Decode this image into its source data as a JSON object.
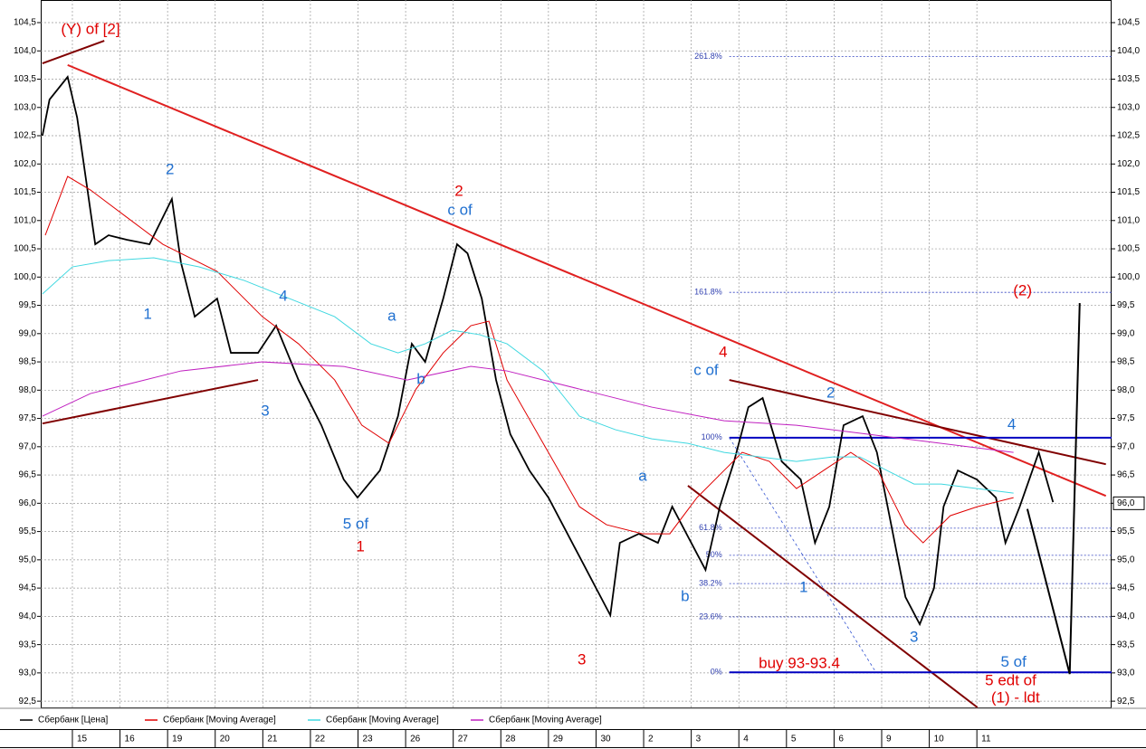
{
  "chart_data": {
    "type": "line",
    "xlim": [
      -0.665,
      21.83
    ],
    "ylim": [
      92.39,
      104.9
    ],
    "grid": true,
    "xticks": [
      {
        "value": 0,
        "label": "15"
      },
      {
        "value": 1,
        "label": "16"
      },
      {
        "value": 2,
        "label": "19"
      },
      {
        "value": 3,
        "label": "20"
      },
      {
        "value": 4,
        "label": "21"
      },
      {
        "value": 5,
        "label": "22"
      },
      {
        "value": 6,
        "label": "23"
      },
      {
        "value": 7,
        "label": "26"
      },
      {
        "value": 8,
        "label": "27"
      },
      {
        "value": 9,
        "label": "28"
      },
      {
        "value": 10,
        "label": "29"
      },
      {
        "value": 11,
        "label": "30"
      },
      {
        "value": 12,
        "label": "2"
      },
      {
        "value": 13,
        "label": "3"
      },
      {
        "value": 14,
        "label": "4"
      },
      {
        "value": 15,
        "label": "5"
      },
      {
        "value": 16,
        "label": "6"
      },
      {
        "value": 17,
        "label": "9"
      },
      {
        "value": 18,
        "label": "10"
      },
      {
        "value": 19,
        "label": "11"
      }
    ],
    "yticks": [
      {
        "value": 92.5,
        "label": "92,5"
      },
      {
        "value": 93,
        "label": "93,0"
      },
      {
        "value": 93.5,
        "label": "93,5"
      },
      {
        "value": 94,
        "label": "94,0"
      },
      {
        "value": 94.5,
        "label": "94,5"
      },
      {
        "value": 95,
        "label": "95,0"
      },
      {
        "value": 95.5,
        "label": "95,5"
      },
      {
        "value": 96,
        "label": "96,0"
      },
      {
        "value": 96.5,
        "label": "96,5"
      },
      {
        "value": 97,
        "label": "97,0"
      },
      {
        "value": 97.5,
        "label": "97,5"
      },
      {
        "value": 98,
        "label": "98,0"
      },
      {
        "value": 98.5,
        "label": "98,5"
      },
      {
        "value": 99,
        "label": "99,0"
      },
      {
        "value": 99.5,
        "label": "99,5"
      },
      {
        "value": 100,
        "label": "100,0"
      },
      {
        "value": 100.5,
        "label": "100,5"
      },
      {
        "value": 101,
        "label": "101,0"
      },
      {
        "value": 101.5,
        "label": "101,5"
      },
      {
        "value": 102,
        "label": "102,0"
      },
      {
        "value": 102.5,
        "label": "102,5"
      },
      {
        "value": 103,
        "label": "103,0"
      },
      {
        "value": 103.5,
        "label": "103,5"
      },
      {
        "value": 104,
        "label": "104,0"
      },
      {
        "value": 104.5,
        "label": "104,5"
      }
    ],
    "last_price": {
      "value": 96.0,
      "label": "96,0"
    },
    "series": [
      {
        "name": "Сбербанк [Цена]",
        "color": "#000000",
        "x": [
          -0.63,
          -0.48,
          -0.1,
          0.1,
          0.29,
          0.48,
          0.76,
          1.14,
          1.62,
          2.09,
          2.28,
          2.57,
          3.04,
          3.33,
          3.9,
          4.28,
          4.75,
          5.23,
          5.7,
          5.99,
          6.46,
          6.84,
          7.13,
          7.41,
          7.79,
          8.08,
          8.3,
          8.6,
          8.9,
          9.2,
          9.6,
          10.0,
          10.4,
          10.8,
          11.3,
          11.5,
          11.9,
          12.3,
          12.6,
          13.0,
          13.3,
          13.6,
          13.9,
          14.2,
          14.5,
          14.9,
          15.3,
          15.6,
          15.9,
          16.2,
          16.6,
          16.9,
          17.2,
          17.5,
          17.8,
          18.1,
          18.3,
          18.6,
          19.0,
          19.4,
          19.6,
          19.9,
          20.3,
          20.6
        ],
        "values": [
          102.5,
          103.14,
          103.54,
          102.82,
          101.7,
          100.58,
          100.74,
          100.66,
          100.58,
          101.38,
          100.26,
          99.3,
          99.62,
          98.66,
          98.66,
          99.14,
          98.18,
          97.38,
          96.42,
          96.1,
          96.58,
          97.54,
          98.82,
          98.5,
          99.62,
          100.58,
          100.42,
          99.62,
          98.18,
          97.22,
          96.58,
          96.1,
          95.46,
          94.82,
          94.02,
          95.3,
          95.46,
          95.3,
          95.94,
          95.3,
          94.82,
          95.94,
          96.74,
          97.7,
          97.86,
          96.74,
          96.42,
          95.3,
          95.94,
          97.38,
          97.54,
          96.9,
          95.62,
          94.34,
          93.86,
          94.5,
          95.94,
          96.58,
          96.42,
          96.1,
          95.3,
          95.94,
          96.9,
          96.02
        ]
      },
      {
        "name": "Сбербанк [Moving Average]",
        "color": "#e00000",
        "x": [
          -0.57,
          -0.1,
          0.38,
          1.14,
          1.9,
          3.04,
          3.99,
          4.75,
          5.51,
          6.08,
          6.65,
          7.22,
          7.79,
          8.37,
          8.75,
          9.13,
          9.89,
          10.65,
          11.22,
          11.98,
          12.55,
          13.12,
          13.69,
          14.07,
          14.64,
          15.21,
          15.78,
          16.35,
          16.92,
          17.49,
          17.87,
          18.44,
          19.01,
          19.39,
          19.77
        ],
        "values": [
          100.74,
          101.78,
          101.54,
          101.06,
          100.58,
          100.1,
          99.3,
          98.82,
          98.18,
          97.38,
          97.06,
          98.02,
          98.66,
          99.14,
          99.22,
          98.18,
          97.06,
          95.94,
          95.62,
          95.46,
          95.46,
          96.1,
          96.58,
          96.9,
          96.74,
          96.26,
          96.58,
          96.9,
          96.58,
          95.62,
          95.3,
          95.78,
          95.94,
          96.02,
          96.1
        ]
      },
      {
        "name": "Сбербанк [Moving Average]",
        "color": "#40d8e0",
        "x": [
          -0.63,
          0,
          0.76,
          1.71,
          2.66,
          3.61,
          4.56,
          5.51,
          6.27,
          6.84,
          7.41,
          7.98,
          8.56,
          9.13,
          9.89,
          10.65,
          11.41,
          12.17,
          12.93,
          13.69,
          14.45,
          15.21,
          15.97,
          16.54,
          17.11,
          17.68,
          18.25,
          19.01,
          19.77
        ],
        "values": [
          99.7,
          100.18,
          100.29,
          100.34,
          100.18,
          99.94,
          99.62,
          99.3,
          98.82,
          98.66,
          98.82,
          99.06,
          98.98,
          98.82,
          98.34,
          97.54,
          97.3,
          97.14,
          97.06,
          96.9,
          96.82,
          96.74,
          96.82,
          96.82,
          96.58,
          96.34,
          96.34,
          96.26,
          96.18
        ]
      },
      {
        "name": "Сбербанк [Moving Average]",
        "color": "#c020c0",
        "x": [
          -0.63,
          0.38,
          2.28,
          3.99,
          5.7,
          7.03,
          8.37,
          9.13,
          10.65,
          12.17,
          13.69,
          15.21,
          16.73,
          18.25,
          19.77
        ],
        "values": [
          97.54,
          97.94,
          98.34,
          98.5,
          98.42,
          98.18,
          98.42,
          98.34,
          98.02,
          97.7,
          97.46,
          97.38,
          97.22,
          97.06,
          96.9
        ]
      }
    ],
    "lines": [
      {
        "x": [
          -0.1,
          21.71
        ],
        "y": [
          103.75,
          96.13
        ],
        "color": "#e02020",
        "dash": false
      },
      {
        "x": [
          -0.63,
          0.67
        ],
        "y": [
          103.78,
          104.18
        ],
        "color": "#800000",
        "dash": false
      },
      {
        "x": [
          -0.63,
          3.9
        ],
        "y": [
          97.41,
          98.18
        ],
        "color": "#800000",
        "dash": false
      },
      {
        "x": [
          13.8,
          21.71
        ],
        "y": [
          98.18,
          96.69
        ],
        "color": "#800000",
        "dash": false
      },
      {
        "x": [
          12.93,
          19.01
        ],
        "y": [
          96.31,
          92.39
        ],
        "color": "#800000",
        "dash": false
      },
      {
        "x": [
          13.8,
          21.83
        ],
        "y": [
          97.16,
          97.16
        ],
        "color": "#0000c0",
        "dash": false
      },
      {
        "x": [
          13.8,
          21.83
        ],
        "y": [
          93.01,
          93.01
        ],
        "color": "#0000c0",
        "dash": false
      },
      {
        "x": [
          13.8,
          16.88
        ],
        "y": [
          97.16,
          93.01
        ],
        "color": "#3050d0",
        "dash": true
      },
      {
        "x": [
          20.06,
          20.95,
          21.16
        ],
        "y": [
          95.9,
          92.98,
          99.54
        ],
        "color": "#000000",
        "dash": false
      }
    ],
    "fib": {
      "x_start": 13.8,
      "levels": [
        {
          "label": "261.8%",
          "price": 103.9
        },
        {
          "label": "161.8%",
          "price": 99.73
        },
        {
          "label": "100%",
          "price": 97.16
        },
        {
          "label": "61.8%",
          "price": 95.56
        },
        {
          "label": "50%",
          "price": 95.08
        },
        {
          "label": "38.2%",
          "price": 94.58
        },
        {
          "label": "23.6%",
          "price": 93.99
        },
        {
          "label": "0%",
          "price": 93.01
        }
      ]
    },
    "annotations": [
      {
        "text": "(Y) of [2]",
        "x": 0.38,
        "y": 104.37,
        "color": "#e00000"
      },
      {
        "text": "2",
        "x": 2.05,
        "y": 101.89,
        "color": "#2070d0"
      },
      {
        "text": "1",
        "x": 1.58,
        "y": 99.33,
        "color": "#2070d0"
      },
      {
        "text": "4",
        "x": 4.43,
        "y": 99.65,
        "color": "#2070d0"
      },
      {
        "text": "3",
        "x": 4.05,
        "y": 97.62,
        "color": "#2070d0"
      },
      {
        "text": "5 of",
        "x": 5.95,
        "y": 95.62,
        "color": "#2070d0"
      },
      {
        "text": "1",
        "x": 6.05,
        "y": 95.22,
        "color": "#e00000"
      },
      {
        "text": "a",
        "x": 6.71,
        "y": 99.3,
        "color": "#2070d0"
      },
      {
        "text": "b",
        "x": 7.32,
        "y": 98.18,
        "color": "#2070d0"
      },
      {
        "text": "2",
        "x": 8.12,
        "y": 101.51,
        "color": "#e00000"
      },
      {
        "text": "c of",
        "x": 8.14,
        "y": 101.17,
        "color": "#2070d0"
      },
      {
        "text": "3",
        "x": 10.7,
        "y": 93.22,
        "color": "#e00000"
      },
      {
        "text": "a",
        "x": 11.98,
        "y": 96.47,
        "color": "#2070d0"
      },
      {
        "text": "b",
        "x": 12.87,
        "y": 94.34,
        "color": "#2070d0"
      },
      {
        "text": "4",
        "x": 13.67,
        "y": 98.66,
        "color": "#e00000"
      },
      {
        "text": "c of",
        "x": 13.31,
        "y": 98.34,
        "color": "#2070d0"
      },
      {
        "text": "2",
        "x": 15.93,
        "y": 97.94,
        "color": "#2070d0"
      },
      {
        "text": "1",
        "x": 15.36,
        "y": 94.5,
        "color": "#2070d0"
      },
      {
        "text": "3",
        "x": 17.68,
        "y": 93.62,
        "color": "#2070d0"
      },
      {
        "text": "4",
        "x": 19.73,
        "y": 97.38,
        "color": "#2070d0"
      },
      {
        "text": "(2)",
        "x": 19.96,
        "y": 99.75,
        "color": "#e00000"
      },
      {
        "text": "buy 93-93.4",
        "x": 15.27,
        "y": 93.16,
        "color": "#e00000"
      },
      {
        "text": "5 of",
        "x": 19.77,
        "y": 93.18,
        "color": "#2070d0"
      },
      {
        "text": "5 edt of",
        "x": 19.71,
        "y": 92.85,
        "color": "#e00000"
      },
      {
        "text": "(1) - ldt",
        "x": 19.81,
        "y": 92.55,
        "color": "#e00000"
      }
    ]
  }
}
